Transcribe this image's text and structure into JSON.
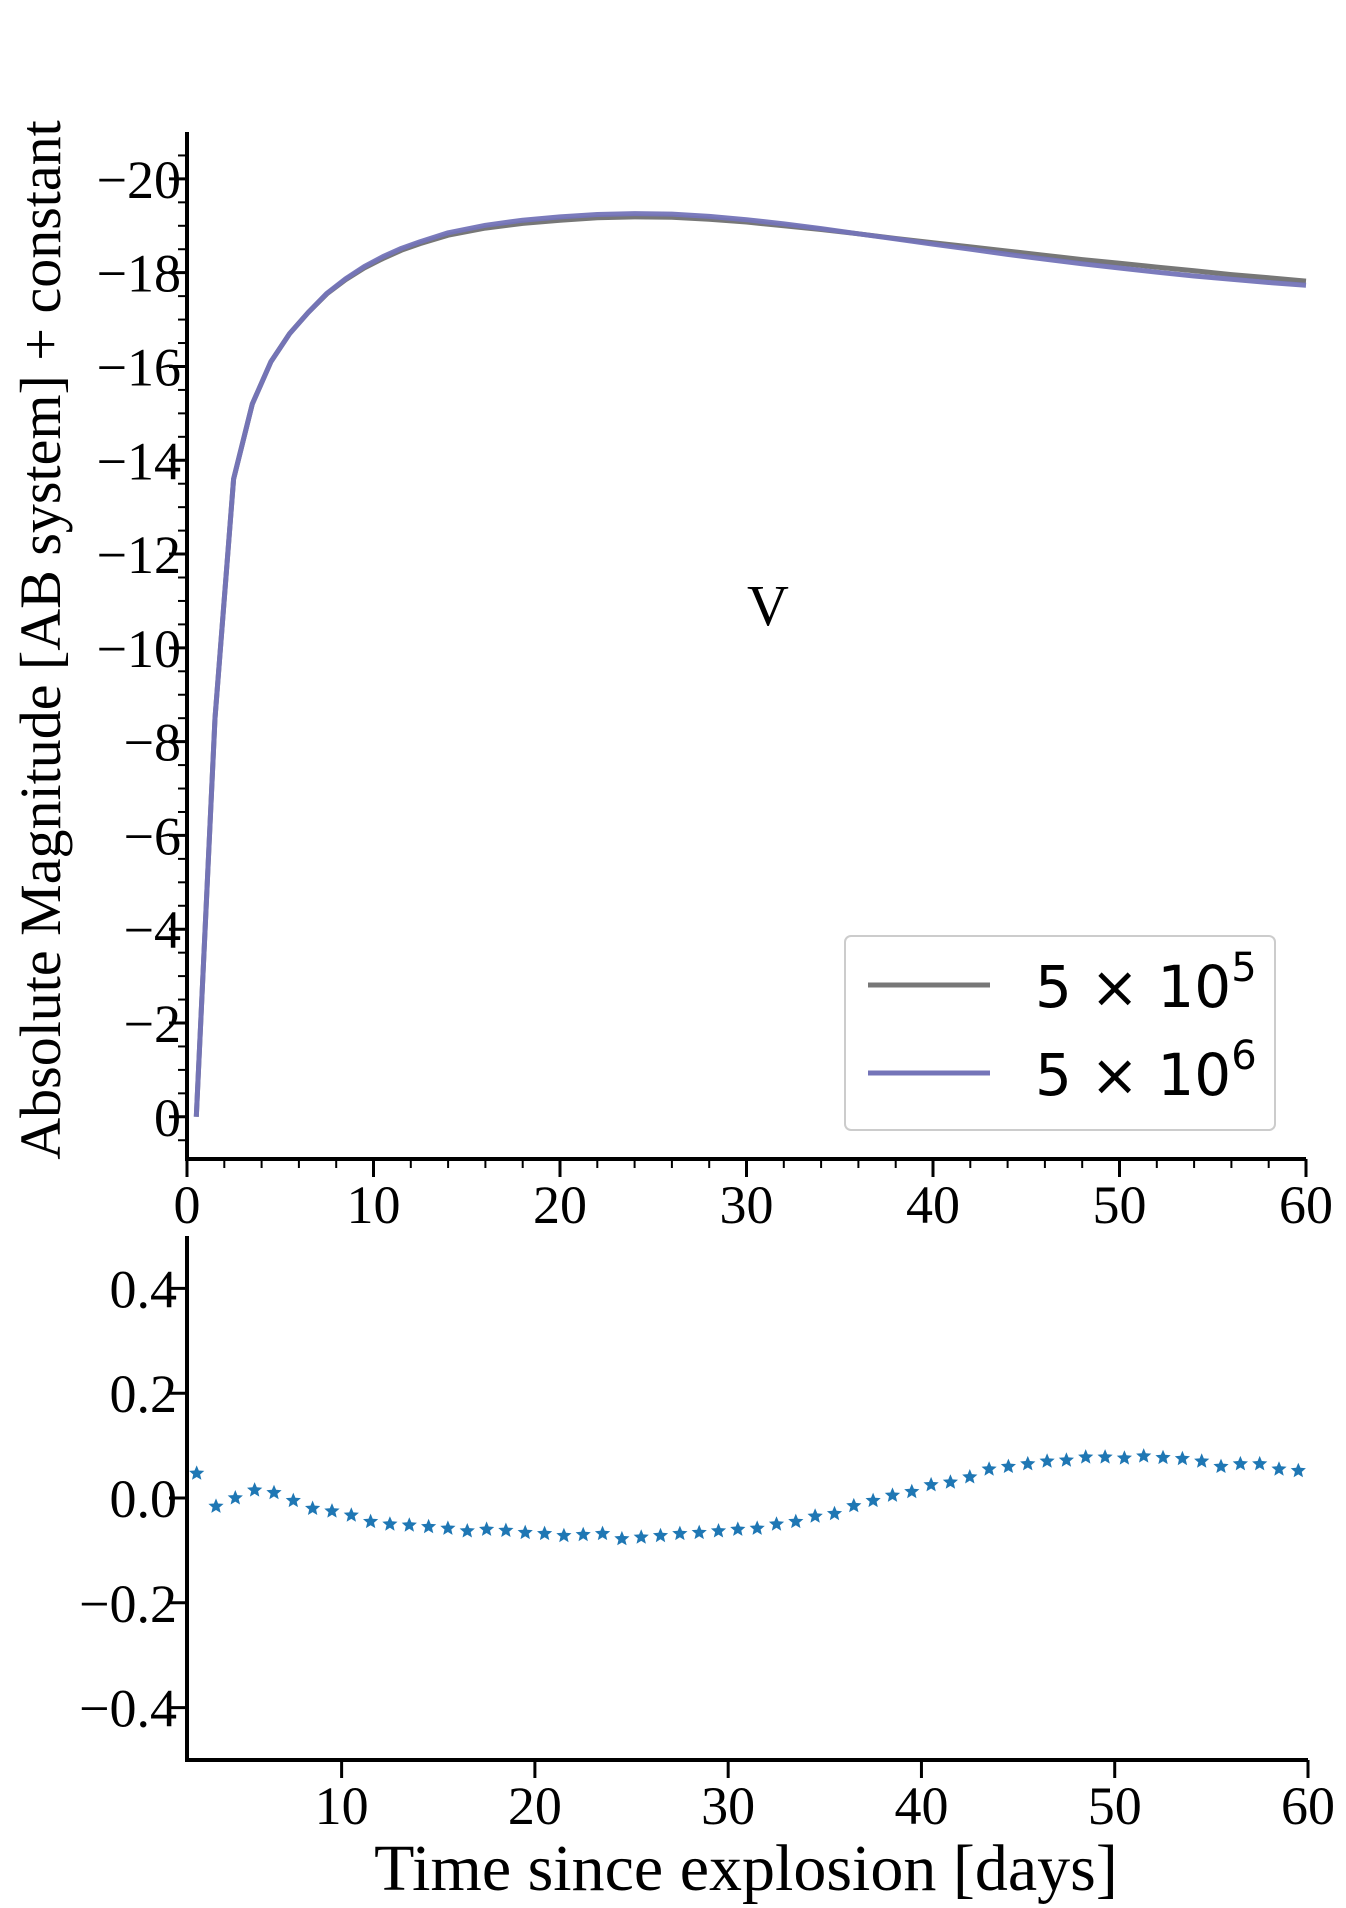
{
  "colors": {
    "series_gray": "#777777",
    "series_blue": "#7474b8",
    "scatter": "#1f77b4",
    "axes": "#000000"
  },
  "chart_data": [
    {
      "type": "line",
      "ylabel": "Absolute Magnitude [AB system] + constant",
      "xlabel": "",
      "annotation": "V",
      "xlim": [
        0,
        60
      ],
      "ylim": [
        0.9,
        -21
      ],
      "y_inverted": true,
      "xticks": [
        0,
        10,
        20,
        30,
        40,
        50,
        60
      ],
      "xtick_labels": [
        "0",
        "10",
        "20",
        "30",
        "40",
        "50",
        "60"
      ],
      "yticks": [
        -20,
        -18,
        -16,
        -14,
        -12,
        -10,
        -8,
        -6,
        -4,
        -2,
        0
      ],
      "ytick_labels": [
        "−20",
        "−18",
        "−16",
        "−14",
        "−12",
        "−10",
        "−8",
        "−6",
        "−4",
        "−2",
        "0"
      ],
      "legend_placement": "lower-right",
      "grid": false,
      "series": [
        {
          "name": "5 × 10^5",
          "name_base": "5 × 10",
          "name_exp": "5",
          "color": "#777777",
          "x": [
            0.5,
            1.5,
            2.5,
            3.5,
            4.5,
            5.5,
            6.5,
            7.5,
            8.5,
            9.5,
            10.5,
            11.5,
            12.5,
            14,
            16,
            18,
            20,
            22,
            24,
            26,
            28,
            30,
            32,
            34,
            36,
            38,
            40,
            42,
            44,
            46,
            48,
            50,
            52,
            54,
            56,
            58,
            60
          ],
          "y": [
            0,
            -8.5,
            -13.6,
            -15.2,
            -16.1,
            -16.7,
            -17.15,
            -17.55,
            -17.85,
            -18.1,
            -18.3,
            -18.48,
            -18.62,
            -18.8,
            -18.95,
            -19.05,
            -19.12,
            -19.17,
            -19.19,
            -19.18,
            -19.14,
            -19.08,
            -19.0,
            -18.92,
            -18.83,
            -18.73,
            -18.64,
            -18.55,
            -18.46,
            -18.37,
            -18.28,
            -18.2,
            -18.12,
            -18.04,
            -17.96,
            -17.89,
            -17.82
          ]
        },
        {
          "name": "5 × 10^6",
          "name_base": "5 × 10",
          "name_exp": "6",
          "color": "#7474b8",
          "x": [
            0.5,
            1.5,
            2.5,
            3.5,
            4.5,
            5.5,
            6.5,
            7.5,
            8.5,
            9.5,
            10.5,
            11.5,
            12.5,
            14,
            16,
            18,
            20,
            22,
            24,
            26,
            28,
            30,
            32,
            34,
            36,
            38,
            40,
            42,
            44,
            46,
            48,
            50,
            52,
            54,
            56,
            58,
            60
          ],
          "y": [
            0,
            -8.5,
            -13.6,
            -15.2,
            -16.1,
            -16.7,
            -17.15,
            -17.56,
            -17.87,
            -18.13,
            -18.34,
            -18.52,
            -18.66,
            -18.85,
            -19.01,
            -19.12,
            -19.19,
            -19.24,
            -19.26,
            -19.25,
            -19.2,
            -19.13,
            -19.04,
            -18.94,
            -18.83,
            -18.72,
            -18.61,
            -18.5,
            -18.39,
            -18.29,
            -18.19,
            -18.1,
            -18.01,
            -17.93,
            -17.86,
            -17.79,
            -17.73
          ]
        }
      ]
    },
    {
      "type": "scatter",
      "xlabel": "Time since explosion [days]",
      "ylabel": "",
      "xlim": [
        2,
        60
      ],
      "ylim": [
        -0.5,
        0.5
      ],
      "xticks": [
        10,
        20,
        30,
        40,
        50,
        60
      ],
      "xtick_labels": [
        "10",
        "20",
        "30",
        "40",
        "50",
        "60"
      ],
      "yticks": [
        0.4,
        0.2,
        0.0,
        -0.2,
        -0.4
      ],
      "ytick_labels": [
        "0.4",
        "0.2",
        "0.0",
        "−0.2",
        "−0.4"
      ],
      "marker": "star",
      "color": "#1f77b4",
      "grid": false,
      "series": [
        {
          "x": [
            2.5,
            3.5,
            4.5,
            5.5,
            6.5,
            7.5,
            8.5,
            9.5,
            10.5,
            11.5,
            12.5,
            13.5,
            14.5,
            15.5,
            16.5,
            17.5,
            18.5,
            19.5,
            20.5,
            21.5,
            22.5,
            23.5,
            24.5,
            25.5,
            26.5,
            27.5,
            28.5,
            29.5,
            30.5,
            31.5,
            32.5,
            33.5,
            34.5,
            35.5,
            36.5,
            37.5,
            38.5,
            39.5,
            40.5,
            41.5,
            42.5,
            43.5,
            44.5,
            45.5,
            46.5,
            47.5,
            48.5,
            49.5,
            50.5,
            51.5,
            52.5,
            53.5,
            54.5,
            55.5,
            56.5,
            57.5,
            58.5,
            59.5
          ],
          "y": [
            0.047,
            -0.016,
            0.0,
            0.015,
            0.01,
            -0.005,
            -0.02,
            -0.025,
            -0.033,
            -0.045,
            -0.05,
            -0.052,
            -0.055,
            -0.058,
            -0.063,
            -0.06,
            -0.062,
            -0.066,
            -0.068,
            -0.072,
            -0.07,
            -0.068,
            -0.078,
            -0.075,
            -0.072,
            -0.068,
            -0.066,
            -0.063,
            -0.06,
            -0.058,
            -0.05,
            -0.045,
            -0.035,
            -0.03,
            -0.015,
            -0.005,
            0.005,
            0.012,
            0.025,
            0.03,
            0.04,
            0.055,
            0.06,
            0.065,
            0.07,
            0.072,
            0.078,
            0.078,
            0.076,
            0.08,
            0.077,
            0.075,
            0.07,
            0.06,
            0.065,
            0.065,
            0.055,
            0.052
          ]
        }
      ]
    }
  ]
}
